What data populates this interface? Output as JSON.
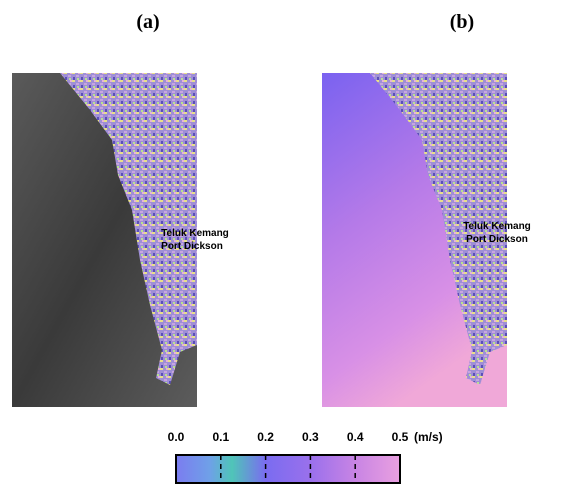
{
  "panels": [
    {
      "label": "(a)",
      "places": [
        "Teluk Kemang",
        "Port Dickson"
      ]
    },
    {
      "label": "(b)",
      "places": [
        "Teluk Kemang",
        "Port Dickson"
      ]
    }
  ],
  "colorbar": {
    "ticks": [
      {
        "value": 0,
        "label": "0.0"
      },
      {
        "value": 0.1,
        "label": "0.1"
      },
      {
        "value": 0.2,
        "label": "0.2"
      },
      {
        "value": 0.3,
        "label": "0.3"
      },
      {
        "value": 0.4,
        "label": "0.4"
      },
      {
        "value": 0.5,
        "label": "0.5"
      }
    ],
    "unit": "(m/s)",
    "range": [
      0,
      0.5
    ]
  }
}
